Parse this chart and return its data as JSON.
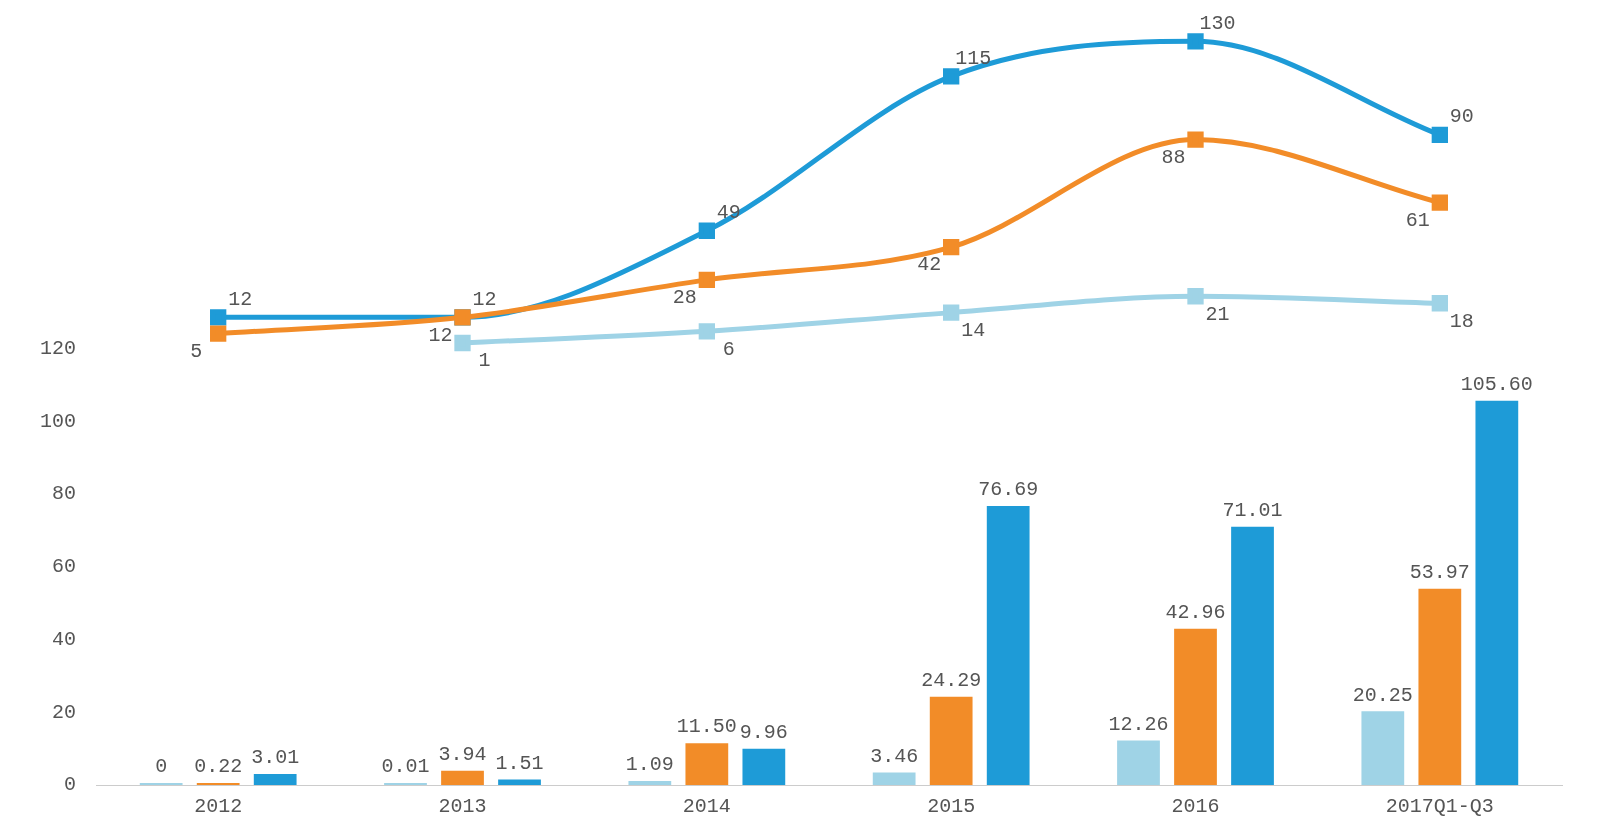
{
  "chart_data": {
    "type": "bar",
    "categories": [
      "2012",
      "2013",
      "2014",
      "2015",
      "2016",
      "2017Q1-Q3"
    ],
    "series": [
      {
        "color": "#9fd3e6",
        "values": [
          0,
          0.01,
          1.09,
          3.46,
          12.26,
          20.25
        ],
        "value_labels": [
          "0",
          "0.01",
          "1.09",
          "3.46",
          "12.26",
          "20.25"
        ]
      },
      {
        "color": "#f28c28",
        "values": [
          0.22,
          3.94,
          11.5,
          24.29,
          42.96,
          53.97
        ],
        "value_labels": [
          "0.22",
          "3.94",
          "11.50",
          "24.29",
          "42.96",
          "53.97"
        ]
      },
      {
        "color": "#1e9bd7",
        "values": [
          3.01,
          1.51,
          9.96,
          76.69,
          71.01,
          105.6
        ],
        "value_labels": [
          "3.01",
          "1.51",
          "9.96",
          "76.69",
          "71.01",
          "105.60"
        ]
      },
      {
        "type": "line",
        "axis": "y2",
        "color": "#9fd3e6",
        "values": [
          null,
          1,
          6,
          14,
          21,
          18
        ],
        "value_labels": [
          null,
          "1",
          "6",
          "14",
          "21",
          "18"
        ]
      },
      {
        "type": "line",
        "axis": "y2",
        "color": "#f28c28",
        "values": [
          5,
          12,
          28,
          42,
          88,
          61
        ],
        "value_labels": [
          "5",
          "12",
          "28",
          "42",
          "88",
          "61"
        ]
      },
      {
        "type": "line",
        "axis": "y2",
        "color": "#1e9bd7",
        "values": [
          12,
          12,
          49,
          115,
          130,
          90
        ],
        "value_labels": [
          "12",
          "12",
          "49",
          "115",
          "130",
          "90"
        ]
      }
    ],
    "ylim": [
      0,
      207
    ],
    "yticks": [
      0,
      20,
      40,
      60,
      80,
      100,
      120
    ],
    "y2lim": [
      -188,
      134
    ],
    "marker": "square",
    "grid": false,
    "legend": false
  }
}
